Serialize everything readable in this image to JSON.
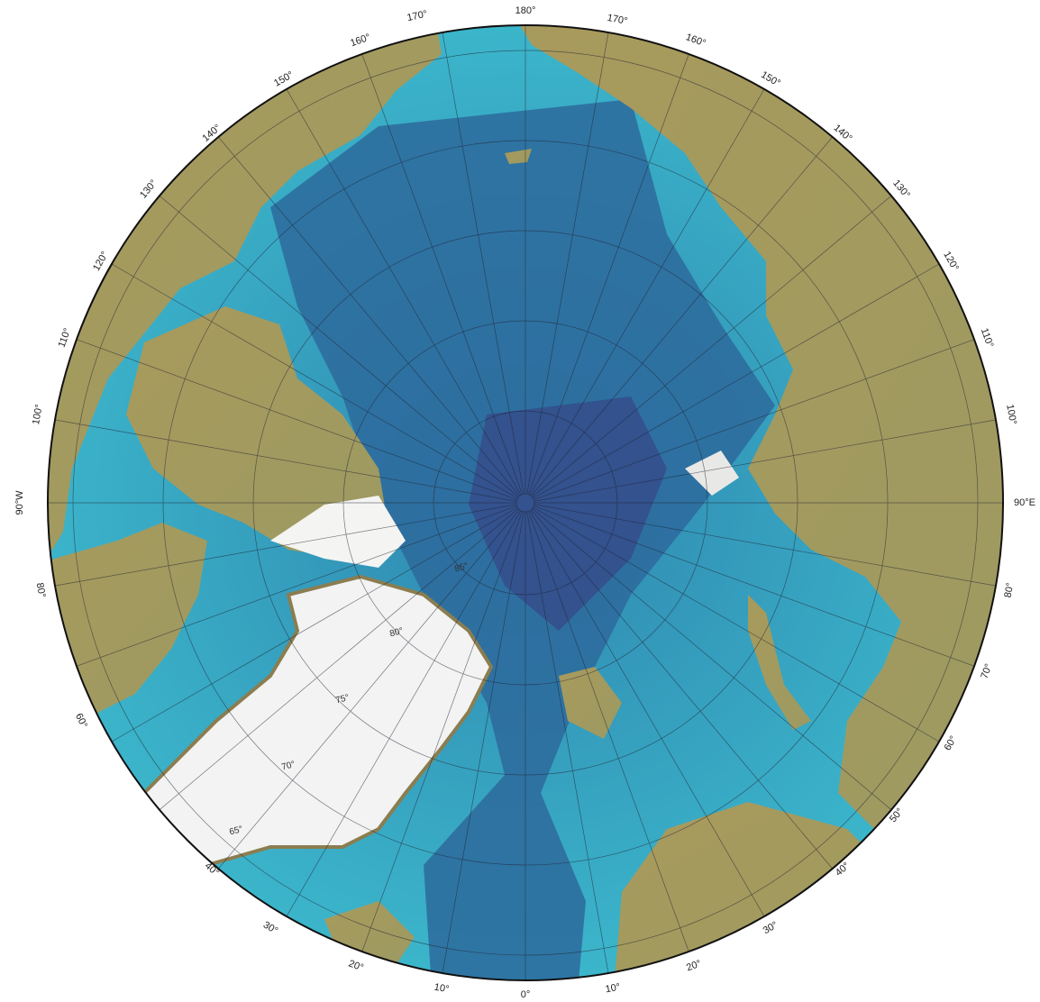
{
  "longitude_labels": [
    "180°",
    "170°",
    "160°",
    "150°",
    "140°",
    "130°",
    "120°",
    "110°",
    "100°",
    "90°E",
    "80°",
    "70°",
    "60°",
    "50°",
    "40°",
    "30°",
    "20°",
    "10°",
    "0°",
    "10°",
    "20°",
    "30°",
    "40°",
    "60°",
    "80°",
    "90°W",
    "100°",
    "110°",
    "120°",
    "130°",
    "140°",
    "150°",
    "160°",
    "170°"
  ],
  "latitude_labels": [
    "85°",
    "80°",
    "75°",
    "70°",
    "65°"
  ]
}
